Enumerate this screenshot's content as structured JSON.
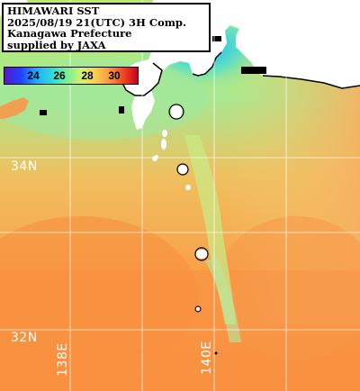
{
  "title": {
    "line1": "HIMAWARI SST",
    "line2": "2025/08/19 21(UTC) 3H Comp.",
    "line3": "Kanagawa Prefecture",
    "line4": "supplied by JAXA"
  },
  "legend": {
    "ticks": [
      "24",
      "26",
      "28",
      "30"
    ],
    "colors": [
      "#5a18c8",
      "#2060ff",
      "#20c8ff",
      "#40e0b0",
      "#90f080",
      "#d8f070",
      "#f8d050",
      "#f89038",
      "#f04020",
      "#c80020"
    ]
  },
  "grid": {
    "lat_labels": [
      "34N",
      "32N"
    ],
    "lon_labels": [
      "138E",
      "140E"
    ]
  },
  "palette": {
    "land": "#ffffff",
    "cloud_mask": "#000000",
    "grid_line": "#ffffff"
  }
}
